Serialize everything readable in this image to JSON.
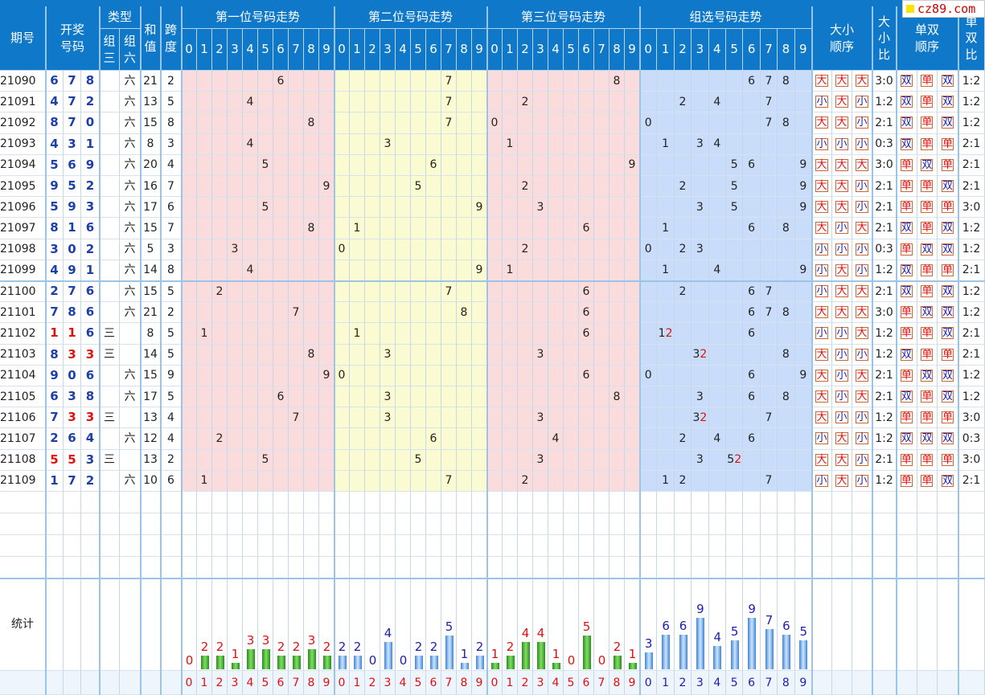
{
  "logo": "cz89.com",
  "headers": {
    "period": "期号",
    "draw": "开奖\n号码",
    "type": "类型",
    "type_g3": "组\n三",
    "type_g6": "组\n六",
    "sum": "和\n值",
    "span": "跨\n度",
    "pos1": "第一位号码走势",
    "pos2": "第二位号码走势",
    "pos3": "第三位号码走势",
    "group": "组选号码走势",
    "bs_order": "大小\n顺序",
    "bs_ratio": "大\n小\n比",
    "oe_order": "单双\n顺序",
    "oe_ratio": "单\n双\n比"
  },
  "digits": [
    "0",
    "1",
    "2",
    "3",
    "4",
    "5",
    "6",
    "7",
    "8",
    "9"
  ],
  "stats_label": "统计",
  "g3_label": "三",
  "g6_label": "六",
  "rows": [
    {
      "p": "21090",
      "n": [
        6,
        7,
        8
      ],
      "t": "六",
      "sum": "21",
      "span": "2",
      "bs": [
        "大",
        "大",
        "大"
      ],
      "bsr": "3:0",
      "oe": [
        "双",
        "单",
        "双"
      ],
      "oer": "1:2"
    },
    {
      "p": "21091",
      "n": [
        4,
        7,
        2
      ],
      "t": "六",
      "sum": "13",
      "span": "5",
      "bs": [
        "小",
        "大",
        "小"
      ],
      "bsr": "1:2",
      "oe": [
        "双",
        "单",
        "双"
      ],
      "oer": "1:2"
    },
    {
      "p": "21092",
      "n": [
        8,
        7,
        0
      ],
      "t": "六",
      "sum": "15",
      "span": "8",
      "bs": [
        "大",
        "大",
        "小"
      ],
      "bsr": "2:1",
      "oe": [
        "双",
        "单",
        "双"
      ],
      "oer": "1:2"
    },
    {
      "p": "21093",
      "n": [
        4,
        3,
        1
      ],
      "t": "六",
      "sum": "8",
      "span": "3",
      "bs": [
        "小",
        "小",
        "小"
      ],
      "bsr": "0:3",
      "oe": [
        "双",
        "单",
        "单"
      ],
      "oer": "2:1"
    },
    {
      "p": "21094",
      "n": [
        5,
        6,
        9
      ],
      "t": "六",
      "sum": "20",
      "span": "4",
      "bs": [
        "大",
        "大",
        "大"
      ],
      "bsr": "3:0",
      "oe": [
        "单",
        "双",
        "单"
      ],
      "oer": "2:1"
    },
    {
      "p": "21095",
      "n": [
        9,
        5,
        2
      ],
      "t": "六",
      "sum": "16",
      "span": "7",
      "bs": [
        "大",
        "大",
        "小"
      ],
      "bsr": "2:1",
      "oe": [
        "单",
        "单",
        "双"
      ],
      "oer": "2:1"
    },
    {
      "p": "21096",
      "n": [
        5,
        9,
        3
      ],
      "t": "六",
      "sum": "17",
      "span": "6",
      "bs": [
        "大",
        "大",
        "小"
      ],
      "bsr": "2:1",
      "oe": [
        "单",
        "单",
        "单"
      ],
      "oer": "3:0"
    },
    {
      "p": "21097",
      "n": [
        8,
        1,
        6
      ],
      "t": "六",
      "sum": "15",
      "span": "7",
      "bs": [
        "大",
        "小",
        "大"
      ],
      "bsr": "2:1",
      "oe": [
        "双",
        "单",
        "双"
      ],
      "oer": "1:2"
    },
    {
      "p": "21098",
      "n": [
        3,
        0,
        2
      ],
      "t": "六",
      "sum": "5",
      "span": "3",
      "bs": [
        "小",
        "小",
        "小"
      ],
      "bsr": "0:3",
      "oe": [
        "单",
        "双",
        "双"
      ],
      "oer": "1:2"
    },
    {
      "p": "21099",
      "n": [
        4,
        9,
        1
      ],
      "t": "六",
      "sum": "14",
      "span": "8",
      "bs": [
        "小",
        "大",
        "小"
      ],
      "bsr": "1:2",
      "oe": [
        "双",
        "单",
        "单"
      ],
      "oer": "2:1"
    },
    {
      "p": "21100",
      "n": [
        2,
        7,
        6
      ],
      "t": "六",
      "sum": "15",
      "span": "5",
      "bs": [
        "小",
        "大",
        "大"
      ],
      "bsr": "2:1",
      "oe": [
        "双",
        "单",
        "双"
      ],
      "oer": "1:2"
    },
    {
      "p": "21101",
      "n": [
        7,
        8,
        6
      ],
      "t": "六",
      "sum": "21",
      "span": "2",
      "bs": [
        "大",
        "大",
        "大"
      ],
      "bsr": "3:0",
      "oe": [
        "单",
        "双",
        "双"
      ],
      "oer": "1:2"
    },
    {
      "p": "21102",
      "n": [
        1,
        1,
        6
      ],
      "t": "三",
      "sum": "8",
      "span": "5",
      "bs": [
        "小",
        "小",
        "大"
      ],
      "bsr": "1:2",
      "oe": [
        "单",
        "单",
        "双"
      ],
      "oer": "2:1"
    },
    {
      "p": "21103",
      "n": [
        8,
        3,
        3
      ],
      "t": "三",
      "sum": "14",
      "span": "5",
      "bs": [
        "大",
        "小",
        "小"
      ],
      "bsr": "1:2",
      "oe": [
        "双",
        "单",
        "单"
      ],
      "oer": "2:1"
    },
    {
      "p": "21104",
      "n": [
        9,
        0,
        6
      ],
      "t": "六",
      "sum": "15",
      "span": "9",
      "bs": [
        "大",
        "小",
        "大"
      ],
      "bsr": "2:1",
      "oe": [
        "单",
        "双",
        "双"
      ],
      "oer": "1:2"
    },
    {
      "p": "21105",
      "n": [
        6,
        3,
        8
      ],
      "t": "六",
      "sum": "17",
      "span": "5",
      "bs": [
        "大",
        "小",
        "大"
      ],
      "bsr": "2:1",
      "oe": [
        "双",
        "单",
        "双"
      ],
      "oer": "1:2"
    },
    {
      "p": "21106",
      "n": [
        7,
        3,
        3
      ],
      "t": "三",
      "sum": "13",
      "span": "4",
      "bs": [
        "大",
        "小",
        "小"
      ],
      "bsr": "1:2",
      "oe": [
        "单",
        "单",
        "单"
      ],
      "oer": "3:0"
    },
    {
      "p": "21107",
      "n": [
        2,
        6,
        4
      ],
      "t": "六",
      "sum": "12",
      "span": "4",
      "bs": [
        "小",
        "大",
        "小"
      ],
      "bsr": "1:2",
      "oe": [
        "双",
        "双",
        "双"
      ],
      "oer": "0:3"
    },
    {
      "p": "21108",
      "n": [
        5,
        5,
        3
      ],
      "t": "三",
      "sum": "13",
      "span": "2",
      "bs": [
        "大",
        "大",
        "小"
      ],
      "bsr": "2:1",
      "oe": [
        "单",
        "单",
        "单"
      ],
      "oer": "3:0"
    },
    {
      "p": "21109",
      "n": [
        1,
        7,
        2
      ],
      "t": "六",
      "sum": "10",
      "span": "6",
      "bs": [
        "小",
        "大",
        "小"
      ],
      "bsr": "1:2",
      "oe": [
        "单",
        "单",
        "双"
      ],
      "oer": "2:1"
    }
  ],
  "stats": {
    "pos1": [
      0,
      2,
      2,
      1,
      3,
      3,
      2,
      2,
      3,
      2
    ],
    "pos2": [
      2,
      2,
      0,
      4,
      0,
      2,
      2,
      5,
      1,
      2
    ],
    "pos3": [
      1,
      2,
      4,
      4,
      1,
      0,
      5,
      0,
      2,
      1
    ],
    "group": [
      3,
      6,
      6,
      9,
      4,
      5,
      9,
      7,
      6,
      5
    ]
  },
  "colors": {
    "header": "#0f78c8",
    "pos1_bg": "#fbdcdc",
    "pos2_bg": "#fbfbd2",
    "pos3_bg": "#fbdcdc",
    "group_bg": "#c9dcfa",
    "red": "#e11010",
    "blue": "#1d1daf"
  }
}
